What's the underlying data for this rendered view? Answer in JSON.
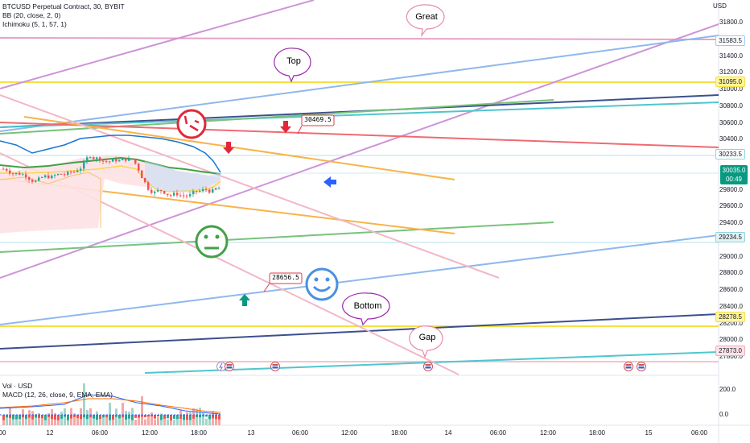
{
  "legend": {
    "symbol": "BTCUSD Perpetual Contract, 30, BYBIT",
    "bb": "BB (20, close, 2, 0)",
    "ichimoku": "Ichimoku (5, 1, 57, 1)",
    "vol": "Vol · USD",
    "macd": "MACD (12, 26, close, 9, EMA, EMA)"
  },
  "axis": {
    "currency": "USD",
    "y_min": 27800,
    "y_max": 31800,
    "ticks": [
      "31800.0",
      "31400.0",
      "31200.0",
      "31000.0",
      "30800.0",
      "30600.0",
      "30400.0",
      "29800.0",
      "29600.0",
      "29400.0",
      "29000.0",
      "28800.0",
      "28600.0",
      "28400.0",
      "28200.0",
      "28000.0",
      "27800.0"
    ],
    "macd_ticks": [
      "200.0",
      "0.0"
    ]
  },
  "price_tags": [
    {
      "label": "31583.5",
      "value": 31583.5,
      "bg": "#ffffff",
      "fg": "#131722",
      "border": "#9ec6f5"
    },
    {
      "label": "31095.0",
      "value": 31095.0,
      "bg": "#fff59d",
      "fg": "#131722",
      "border": "#f5e043"
    },
    {
      "label": "30233.5",
      "value": 30233.5,
      "bg": "#ffffff",
      "fg": "#131722",
      "border": "#8bd3e0"
    },
    {
      "label": "29234.5",
      "value": 29234.5,
      "bg": "#e6f3f3",
      "fg": "#131722",
      "border": "#8bd3e0"
    },
    {
      "label": "28278.5",
      "value": 28278.5,
      "bg": "#fff59d",
      "fg": "#131722",
      "border": "#f5e043"
    },
    {
      "label": "27873.0",
      "value": 27873.0,
      "bg": "#fde3e8",
      "fg": "#131722",
      "border": "#f2a9b8"
    }
  ],
  "current": {
    "price": "30035.0",
    "countdown": "00:49",
    "value": 30035.0,
    "color": "#089981"
  },
  "time_labels": [
    {
      "label": "00",
      "t": 0
    },
    {
      "label": "12",
      "t": 1
    },
    {
      "label": "06:00",
      "t": 2
    },
    {
      "label": "12:00",
      "t": 3
    },
    {
      "label": "18:00",
      "t": 4
    },
    {
      "label": "13",
      "t": 5
    },
    {
      "label": "06:00",
      "t": 6
    },
    {
      "label": "12:00",
      "t": 7
    },
    {
      "label": "18:00",
      "t": 8
    },
    {
      "label": "14",
      "t": 9
    },
    {
      "label": "06:00",
      "t": 10
    },
    {
      "label": "12:00",
      "t": 11
    },
    {
      "label": "18:00",
      "t": 12
    },
    {
      "label": "15",
      "t": 13
    },
    {
      "label": "06:00",
      "t": 14
    }
  ],
  "annotations": {
    "great": "Great",
    "top": "Top",
    "bottom": "Bottom",
    "gap": "Gap",
    "marker_upper": "30469.5",
    "marker_lower": "28656.5"
  },
  "colors": {
    "great": "#e88aa9",
    "top": "#9c27b0",
    "bottom": "#9c27b0",
    "gap": "#e88aa9",
    "marker": "#e03a4a",
    "sad": "#e0283a",
    "neutral": "#43a047",
    "happy": "#4a90e2"
  },
  "icons": [
    "sad-face-icon",
    "neutral-face-icon",
    "happy-face-icon",
    "down-arrow-icon",
    "up-arrow-icon",
    "left-arrow-icon",
    "event-flag-icon",
    "lightning-icon"
  ]
}
